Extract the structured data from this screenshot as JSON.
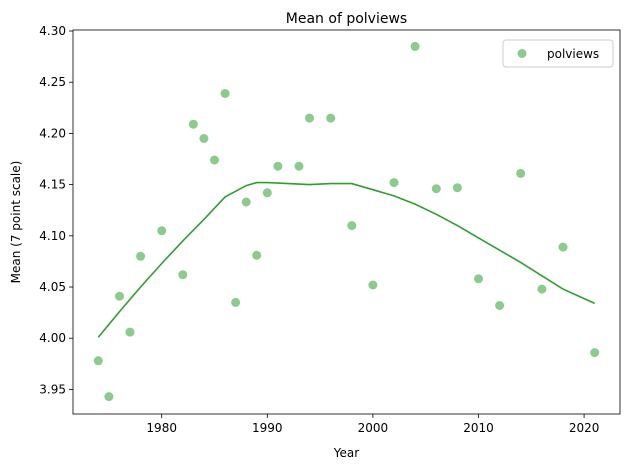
{
  "chart_data": {
    "type": "scatter",
    "title": "Mean of polviews",
    "xlabel": "Year",
    "ylabel": "Mean (7 point scale)",
    "xlim": [
      1971.6,
      2023.4
    ],
    "ylim": [
      3.926,
      4.301
    ],
    "xticks": [
      1980,
      1990,
      2000,
      2010,
      2020
    ],
    "yticks": [
      3.95,
      4.0,
      4.05,
      4.1,
      4.15,
      4.2,
      4.25,
      4.3
    ],
    "ytick_labels": [
      "3.95",
      "4.00",
      "4.05",
      "4.10",
      "4.15",
      "4.20",
      "4.25",
      "4.30"
    ],
    "grid": false,
    "legend_position": "top-right",
    "series": [
      {
        "name": "polviews",
        "kind": "scatter",
        "color": "#2ca02c",
        "x": [
          1974,
          1975,
          1976,
          1977,
          1978,
          1980,
          1982,
          1983,
          1984,
          1985,
          1986,
          1987,
          1988,
          1989,
          1990,
          1991,
          1993,
          1994,
          1996,
          1998,
          2000,
          2002,
          2004,
          2006,
          2008,
          2010,
          2012,
          2014,
          2016,
          2018,
          2021
        ],
        "y": [
          3.978,
          3.943,
          4.041,
          4.006,
          4.08,
          4.105,
          4.062,
          4.209,
          4.195,
          4.174,
          4.239,
          4.035,
          4.133,
          4.081,
          4.142,
          4.168,
          4.168,
          4.215,
          4.215,
          4.11,
          4.052,
          4.152,
          4.285,
          4.146,
          4.147,
          4.058,
          4.032,
          4.161,
          4.048,
          4.089,
          3.986
        ]
      },
      {
        "kind": "line",
        "color": "#2ca02c",
        "x": [
          1974,
          1976,
          1978,
          1980,
          1982,
          1984,
          1986,
          1988,
          1989,
          1990,
          1992,
          1994,
          1996,
          1998,
          2000,
          2002,
          2004,
          2006,
          2008,
          2010,
          2012,
          2014,
          2016,
          2018,
          2021
        ],
        "y": [
          4.001,
          4.026,
          4.05,
          4.073,
          4.095,
          4.116,
          4.138,
          4.149,
          4.152,
          4.152,
          4.151,
          4.15,
          4.151,
          4.151,
          4.145,
          4.139,
          4.131,
          4.121,
          4.11,
          4.098,
          4.086,
          4.074,
          4.061,
          4.048,
          4.034
        ]
      }
    ]
  }
}
